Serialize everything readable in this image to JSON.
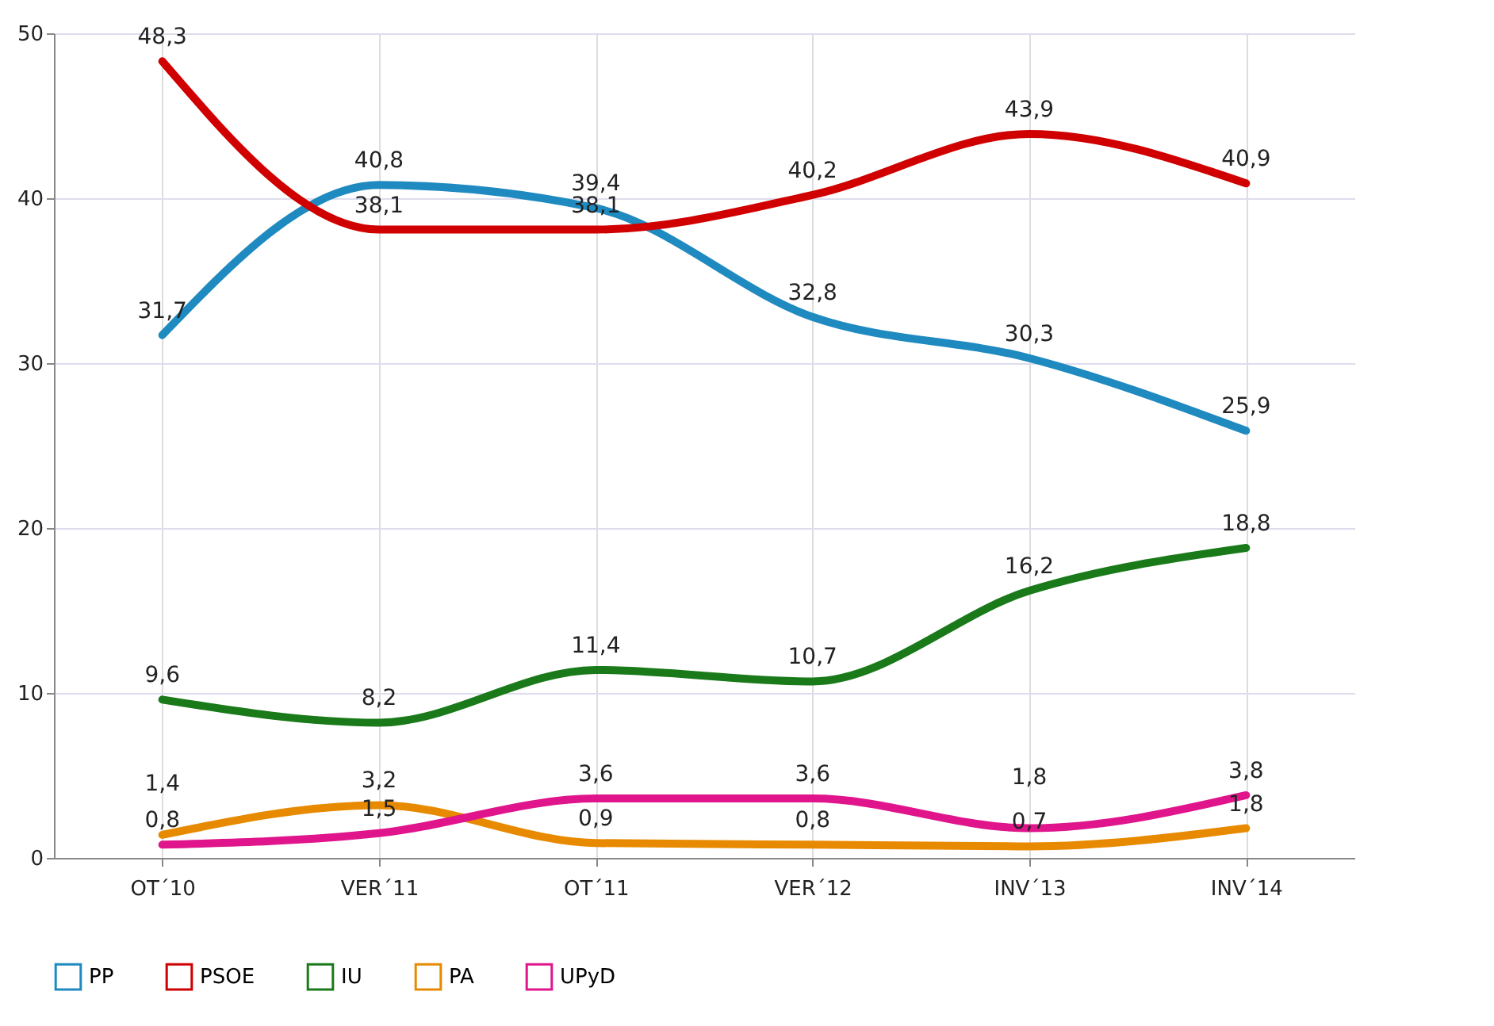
{
  "chart_data": {
    "type": "line",
    "categories": [
      "OT´10",
      "VER´11",
      "OT´11",
      "VER´12",
      "INV´13",
      "INV´14"
    ],
    "series": [
      {
        "name": "PP",
        "color": "#1f8ac0",
        "values": [
          31.7,
          40.8,
          39.4,
          32.8,
          30.3,
          25.9
        ],
        "value_labels": [
          "31,7",
          "40,8",
          "39,4",
          "32,8",
          "30,3",
          "25,9"
        ]
      },
      {
        "name": "PSOE",
        "color": "#d00000",
        "values": [
          48.3,
          38.1,
          38.1,
          40.2,
          43.9,
          40.9
        ],
        "value_labels": [
          "48,3",
          "38,1",
          "38,1",
          "40,2",
          "43,9",
          "40,9"
        ]
      },
      {
        "name": "IU",
        "color": "#1a7a1a",
        "values": [
          9.6,
          8.2,
          11.4,
          10.7,
          16.2,
          18.8
        ],
        "value_labels": [
          "9,6",
          "8,2",
          "11,4",
          "10,7",
          "16,2",
          "18,8"
        ]
      },
      {
        "name": "PA",
        "color": "#e88a00",
        "values": [
          1.4,
          3.2,
          0.9,
          0.8,
          0.7,
          1.8
        ],
        "value_labels": [
          "1,4",
          "3,2",
          "0,9",
          "0,8",
          "0,7",
          "1,8"
        ]
      },
      {
        "name": "UPyD",
        "color": "#e0158c",
        "values": [
          0.8,
          1.5,
          3.6,
          3.6,
          1.8,
          3.8
        ],
        "value_labels": [
          "0,8",
          "1,5",
          "3,6",
          "3,6",
          "1,8",
          "3,8"
        ]
      }
    ],
    "ylim": [
      0,
      50
    ],
    "yticks": [
      0,
      10,
      20,
      30,
      40,
      50
    ],
    "grid": true,
    "legend": "bottom",
    "marker": "none"
  }
}
